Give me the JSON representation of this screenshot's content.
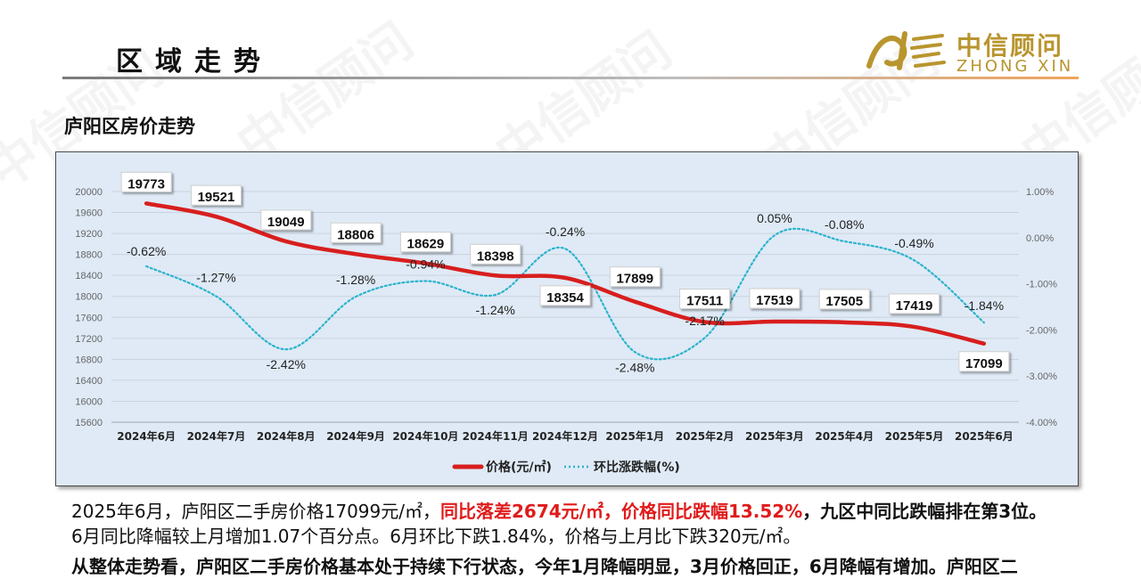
{
  "header": {
    "title": "区域走势",
    "logo_cn": "中信顾问",
    "logo_en": "ZHONG XIN"
  },
  "section_title": "庐阳区房价走势",
  "watermark_text": "中信顾问",
  "colors": {
    "price_line": "#d81e1e",
    "mom_line": "#2bb3cc",
    "highlight_text": "#e01b1b",
    "chart_bg": "#dfeaf6",
    "logo_gold": "#b8952e"
  },
  "chart_data": {
    "type": "line",
    "categories": [
      "2024年6月",
      "2024年7月",
      "2024年8月",
      "2024年9月",
      "2024年10月",
      "2024年11月",
      "2024年12月",
      "2025年1月",
      "2025年2月",
      "2025年3月",
      "2025年4月",
      "2025年5月",
      "2025年6月"
    ],
    "series": [
      {
        "name": "价格(元/㎡)",
        "axis": "left",
        "style": "solid",
        "values": [
          19773,
          19521,
          19049,
          18806,
          18629,
          18398,
          18354,
          17899,
          17511,
          17519,
          17505,
          17419,
          17099
        ],
        "labels": [
          "19773",
          "19521",
          "19049",
          "18806",
          "18629",
          "18398",
          "18354",
          "17899",
          "17511",
          "17519",
          "17505",
          "17419",
          "17099"
        ]
      },
      {
        "name": "环比涨跌幅(%)",
        "axis": "right",
        "style": "dotted",
        "values": [
          -0.62,
          -1.27,
          -2.42,
          -1.28,
          -0.94,
          -1.24,
          -0.24,
          -2.48,
          -2.17,
          0.05,
          -0.08,
          -0.49,
          -1.84
        ],
        "labels": [
          "-0.62%",
          "-1.27%",
          "-2.42%",
          "-1.28%",
          "-0.94%",
          "-1.24%",
          "-0.24%",
          "-2.48%",
          "-2.17%",
          "0.05%",
          "-0.08%",
          "-0.49%",
          "-1.84%"
        ]
      }
    ],
    "y_left": {
      "min": 15600,
      "max": 20000,
      "ticks": [
        "15600",
        "16000",
        "16400",
        "16800",
        "17200",
        "17600",
        "18000",
        "18400",
        "18800",
        "19200",
        "19600",
        "20000"
      ]
    },
    "y_right": {
      "min": -4.0,
      "max": 1.0,
      "ticks": [
        "-4.00%",
        "-3.00%",
        "-2.00%",
        "-1.00%",
        "0.00%",
        "1.00%"
      ]
    },
    "grid": true,
    "legend_position": "bottom"
  },
  "paragraph1": {
    "part1": "2025年6月，庐阳区二手房价格17099元/㎡，",
    "part2_red": "同比落差2674元/㎡，价格同比跌幅13.52%",
    "part3_bold": "，九区中同比跌幅排在第3位。",
    "part4": "6月同比降幅较上月增加1.07个百分点。6月环比下跌1.84%，价格与上月比下跌320元/㎡。"
  },
  "paragraph2": "从整体走势看，庐阳区二手房价格基本处于持续下行状态，今年1月降幅明显，3月价格回正，6月降幅有增加。庐阳区二"
}
